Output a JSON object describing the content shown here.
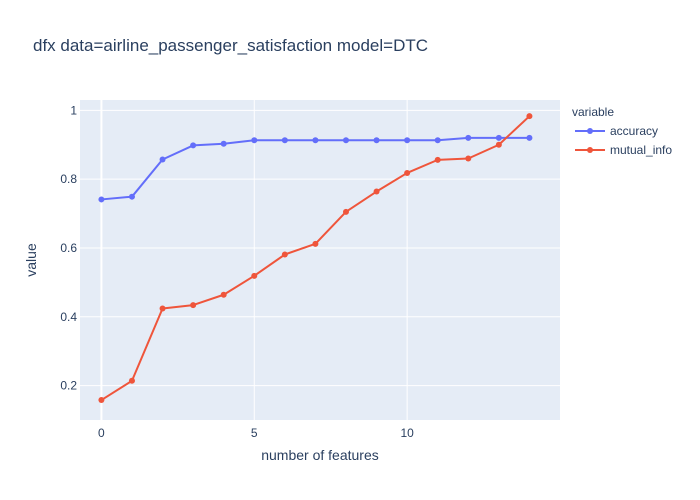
{
  "chart_data": {
    "type": "line",
    "title": "dfx data=airline_passenger_satisfaction model=DTC",
    "xlabel": "number of features",
    "ylabel": "value",
    "legend_title": "variable",
    "legend_position": "right",
    "xlim": [
      -0.7,
      15.0
    ],
    "ylim": [
      0.1,
      1.03
    ],
    "x_ticks": [
      0,
      5,
      10
    ],
    "y_ticks": [
      0.2,
      0.4,
      0.6,
      0.8,
      1
    ],
    "x_tick_labels": [
      "0",
      "5",
      "10"
    ],
    "y_tick_labels": [
      "0.2",
      "0.4",
      "0.6",
      "0.8",
      "1"
    ],
    "grid": true,
    "x": [
      0,
      1,
      2,
      3,
      4,
      5,
      6,
      7,
      8,
      9,
      10,
      11,
      12,
      13,
      14
    ],
    "series": [
      {
        "name": "accuracy",
        "color": "#636efa",
        "values": [
          0.741,
          0.749,
          0.857,
          0.898,
          0.903,
          0.913,
          0.913,
          0.913,
          0.913,
          0.913,
          0.913,
          0.913,
          0.92,
          0.92,
          0.92
        ]
      },
      {
        "name": "mutual_info",
        "color": "#ef553b",
        "values": [
          0.158,
          0.214,
          0.424,
          0.434,
          0.464,
          0.519,
          0.581,
          0.612,
          0.705,
          0.764,
          0.818,
          0.856,
          0.86,
          0.9,
          0.983
        ]
      }
    ]
  }
}
